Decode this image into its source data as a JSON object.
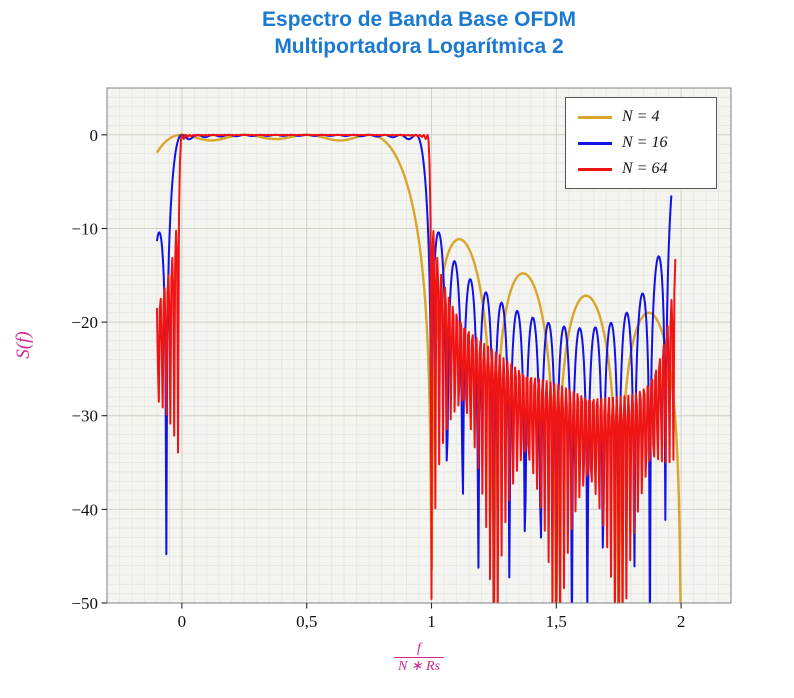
{
  "chart_data": {
    "type": "line",
    "title_lines": [
      "Espectro de Banda Base OFDM",
      "Multiportadora Logarítmica 2"
    ],
    "ylabel": "S(f)",
    "xlabel": {
      "numerator": "f",
      "denominator": "N ∗ Rs"
    },
    "xlim": [
      -0.3,
      2.2
    ],
    "ylim": [
      -50,
      5
    ],
    "x_ticks": [
      {
        "v": 0,
        "label": "0"
      },
      {
        "v": 0.5,
        "label": "0,5"
      },
      {
        "v": 1,
        "label": "1"
      },
      {
        "v": 1.5,
        "label": "1,5"
      },
      {
        "v": 2,
        "label": "2"
      }
    ],
    "y_ticks": [
      {
        "v": 0,
        "label": "0"
      },
      {
        "v": -10,
        "label": "−10"
      },
      {
        "v": -20,
        "label": "−20"
      },
      {
        "v": -30,
        "label": "−30"
      },
      {
        "v": -40,
        "label": "−40"
      },
      {
        "v": -50,
        "label": "−50"
      }
    ],
    "grid": {
      "on": true,
      "x_minor_step": 0.05,
      "y_minor_step": 1
    },
    "legend": {
      "position": "top-right"
    },
    "model": "S_N(x) = 10*log10( sum_{k=0..N-1} sinc^2(N*x - k) + [sinc^2(N*x - 2N) alias term for N=16,64] ), with x = f/(N*Rs); flat 0 dB band over 0<=x<=1, decaying sidelobes to x=2, narrow alias spike near x=2 for N=16 and N=64",
    "series": [
      {
        "name": "N = 4",
        "N": 4,
        "color": "#d8a62a",
        "width": 2.4,
        "samples": 700,
        "domain": [
          -0.1,
          2.0
        ],
        "replica": false
      },
      {
        "name": "N = 16",
        "N": 16,
        "color": "#1212e6",
        "width": 2.0,
        "samples": 600,
        "domain": [
          -0.1,
          1.961
        ],
        "replica": true
      },
      {
        "name": "N = 64",
        "N": 64,
        "color": "#f01515",
        "width": 2.0,
        "samples": 540,
        "domain": [
          -0.1,
          1.977
        ],
        "replica": true
      }
    ],
    "colors": {
      "title": "#1b79d0",
      "axis_label": "#d02a8f",
      "plot_bg": "#f4f4f0",
      "grid_minor": "#e7e7e3",
      "grid_major": "#d0d0ca",
      "frame": "#808080",
      "tick": "#222222",
      "tick_label": "#111111"
    }
  }
}
